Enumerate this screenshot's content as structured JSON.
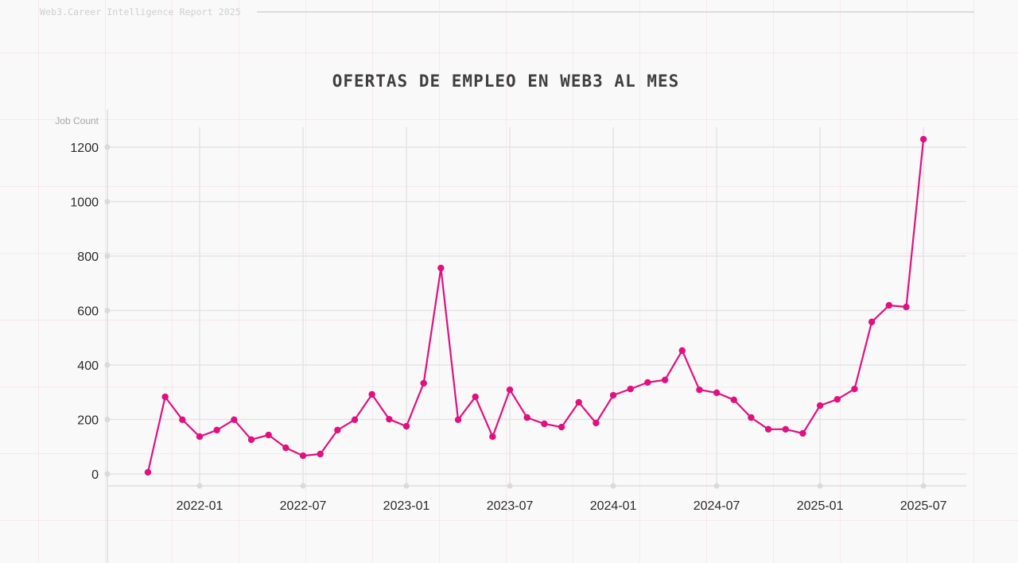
{
  "header": {
    "report_label": "Web3.Career Intelligence Report 2025"
  },
  "colors": {
    "line": "#e0117f",
    "grid": "#e4e4e4",
    "axis": "#dedede",
    "title": "#3f3f3f",
    "background": "#f9f9f9"
  },
  "chart_data": {
    "type": "line",
    "title": "OFERTAS DE EMPLEO EN WEB3 AL MES",
    "xlabel": "",
    "ylabel": "Job Count",
    "ylim": [
      0,
      1200
    ],
    "yticks": [
      0,
      200,
      400,
      600,
      800,
      1000,
      1200
    ],
    "xtick_labels": [
      "2022-01",
      "2022-07",
      "2023-01",
      "2023-07",
      "2024-01",
      "2024-07",
      "2025-01",
      "2025-07"
    ],
    "grid": true,
    "legend": "none",
    "x": [
      "2021-10",
      "2021-11",
      "2021-12",
      "2022-01",
      "2022-02",
      "2022-03",
      "2022-04",
      "2022-05",
      "2022-06",
      "2022-07",
      "2022-08",
      "2022-09",
      "2022-10",
      "2022-11",
      "2022-12",
      "2023-01",
      "2023-02",
      "2023-03",
      "2023-04",
      "2023-05",
      "2023-06",
      "2023-07",
      "2023-08",
      "2023-09",
      "2023-10",
      "2023-11",
      "2023-12",
      "2024-01",
      "2024-02",
      "2024-03",
      "2024-04",
      "2024-05",
      "2024-06",
      "2024-07",
      "2024-08",
      "2024-09",
      "2024-10",
      "2024-11",
      "2024-12",
      "2025-01",
      "2025-02",
      "2025-03",
      "2025-04",
      "2025-05",
      "2025-06",
      "2025-07"
    ],
    "series": [
      {
        "name": "Job Count",
        "values": [
          6,
          283,
          199,
          137,
          161,
          199,
          126,
          143,
          96,
          67,
          73,
          161,
          199,
          292,
          201,
          175,
          333,
          756,
          199,
          283,
          137,
          309,
          207,
          184,
          172,
          263,
          187,
          289,
          312,
          336,
          345,
          453,
          309,
          298,
          272,
          207,
          164,
          164,
          149,
          251,
          274,
          312,
          558,
          619,
          613,
          1229
        ]
      }
    ]
  }
}
